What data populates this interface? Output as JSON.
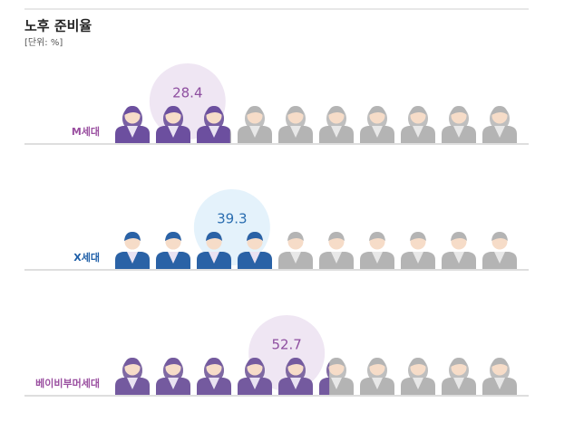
{
  "chart_data": {
    "type": "pictogram",
    "title": "노후 준비율",
    "subtitle": "[단위: %]",
    "categories": [
      "M세대",
      "X세대",
      "베이비부머세대"
    ],
    "values": [
      28.4,
      39.3,
      52.7
    ],
    "colors": [
      "#6c4f9f",
      "#2a62a6",
      "#745a9f"
    ]
  }
}
